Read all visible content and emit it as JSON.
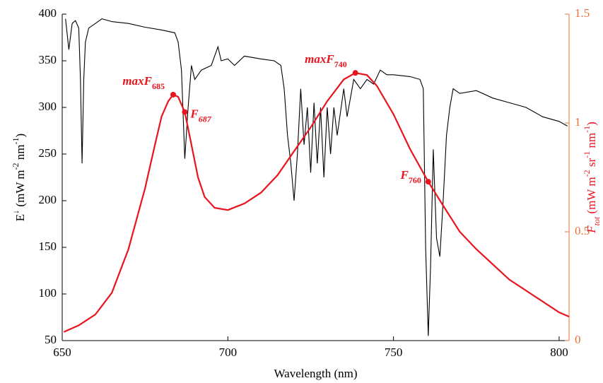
{
  "chart_data": {
    "type": "line",
    "xlabel": "Wavelength (nm)",
    "ylabel": [
      {
        "t": "E"
      },
      {
        "t": "↓",
        "shift": "super"
      },
      {
        "t": " (mW m"
      },
      {
        "t": "-2",
        "shift": "super"
      },
      {
        "t": " nm"
      },
      {
        "t": "-1",
        "shift": "super"
      },
      {
        "t": ")"
      }
    ],
    "y2label": [
      {
        "t": "F",
        "italic": true
      },
      {
        "t": "tot",
        "shift": "sub",
        "italic": true
      },
      {
        "t": " (mW m"
      },
      {
        "t": "-2",
        "shift": "super"
      },
      {
        "t": " sr"
      },
      {
        "t": "-1",
        "shift": "super"
      },
      {
        "t": " nm"
      },
      {
        "t": "-1",
        "shift": "super"
      },
      {
        "t": ")"
      }
    ],
    "xlim": [
      650,
      803
    ],
    "xticks": [
      650,
      700,
      750,
      800
    ],
    "ylim": [
      50,
      400
    ],
    "yticks": [
      50,
      100,
      150,
      200,
      250,
      300,
      350,
      400
    ],
    "y2lim": [
      0,
      1.5
    ],
    "y2ticks": [
      0,
      0.5,
      1,
      1.5
    ],
    "y2color": "#e8733a",
    "series": [
      {
        "color": "#000000",
        "x": [
          651,
          652,
          653,
          654,
          655,
          655.5,
          656,
          656.5,
          657,
          658,
          660,
          662,
          665,
          670,
          675,
          680,
          684,
          685,
          686,
          687,
          688,
          689,
          690,
          692,
          695,
          697,
          698,
          700,
          702,
          705,
          710,
          714,
          716,
          717,
          718,
          719,
          720,
          721,
          722,
          723,
          724,
          725,
          726,
          727,
          728,
          729,
          730,
          731,
          732,
          733,
          735,
          736,
          738,
          740,
          742,
          744,
          746,
          748,
          750,
          755,
          758,
          759,
          759.7,
          760.5,
          761.2,
          762,
          763,
          764,
          765,
          766,
          767,
          768,
          770,
          775,
          780,
          785,
          790,
          795,
          800,
          802.5
        ],
        "values": [
          395,
          362,
          390,
          393,
          385,
          330,
          240,
          330,
          370,
          385,
          390,
          395,
          392,
          390,
          386,
          383,
          380,
          370,
          340,
          245,
          300,
          345,
          330,
          340,
          345,
          365,
          350,
          352,
          345,
          355,
          352,
          350,
          345,
          320,
          270,
          240,
          200,
          250,
          320,
          260,
          300,
          230,
          305,
          240,
          300,
          225,
          300,
          250,
          300,
          270,
          320,
          290,
          330,
          320,
          330,
          325,
          340,
          335,
          335,
          333,
          330,
          320,
          150,
          55,
          130,
          255,
          160,
          140,
          200,
          270,
          300,
          320,
          315,
          318,
          310,
          305,
          300,
          290,
          285,
          280
        ]
      },
      {
        "color": "#e8141e",
        "axis": "y2",
        "x": [
          650.5,
          655,
          660,
          665,
          670,
          675,
          678,
          680,
          682,
          683.5,
          685,
          687,
          689,
          691,
          693,
          696,
          700,
          705,
          710,
          715,
          720,
          725,
          730,
          735,
          738.5,
          742,
          745,
          750,
          755,
          760.5,
          765,
          770,
          775,
          780,
          785,
          790,
          795,
          800,
          803
        ],
        "values": [
          0.04,
          0.07,
          0.12,
          0.22,
          0.42,
          0.7,
          0.9,
          1.03,
          1.1,
          1.13,
          1.12,
          1.05,
          0.9,
          0.75,
          0.66,
          0.61,
          0.6,
          0.63,
          0.68,
          0.76,
          0.87,
          0.98,
          1.1,
          1.2,
          1.23,
          1.22,
          1.17,
          1.04,
          0.88,
          0.73,
          0.62,
          0.5,
          0.42,
          0.35,
          0.28,
          0.23,
          0.18,
          0.13,
          0.11
        ]
      }
    ],
    "annotations": [
      {
        "text": "maxF",
        "sub": "685",
        "x": 683.5,
        "y": 1.13,
        "italic_sub": false
      },
      {
        "text": "F",
        "sub": "687",
        "x": 687,
        "y": 1.05,
        "italic_sub": true
      },
      {
        "text": "maxF",
        "sub": "740",
        "x": 738.5,
        "y": 1.23,
        "italic_sub": false
      },
      {
        "text": "F",
        "sub": "760",
        "x": 760.5,
        "y": 0.73,
        "italic_sub": false
      }
    ],
    "annotation_color": "#e8141e"
  }
}
